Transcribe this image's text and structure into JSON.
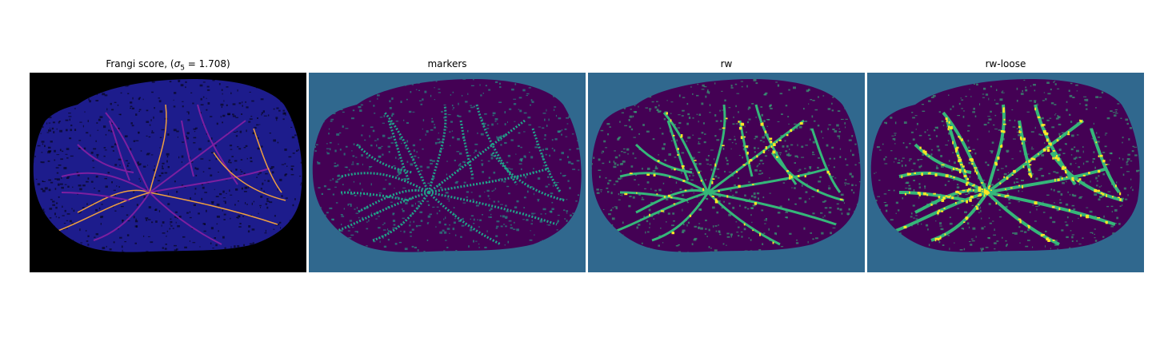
{
  "figure": {
    "panels": [
      {
        "id": "frangi",
        "title_prefix": "Frangi score, (",
        "title_math": "σ",
        "title_sub": "5",
        "title_suffix": " = 1.708)",
        "colors": {
          "background": "#000000",
          "tissue": "#1d1c8c",
          "vessel_dark": "#7c1fa0",
          "vessel_bright": "#f0a040"
        }
      },
      {
        "id": "markers",
        "title": "markers",
        "colors": {
          "background": "#30688e",
          "tissue": "#440154",
          "vessel": "#21a38a"
        }
      },
      {
        "id": "rw",
        "title": "rw",
        "colors": {
          "background": "#30688e",
          "tissue": "#440154",
          "vessel": "#35b779",
          "highlight": "#fde725"
        }
      },
      {
        "id": "rw-loose",
        "title": "rw-loose",
        "colors": {
          "background": "#30688e",
          "tissue": "#440154",
          "vessel": "#35b779",
          "highlight": "#fde725"
        }
      }
    ]
  }
}
